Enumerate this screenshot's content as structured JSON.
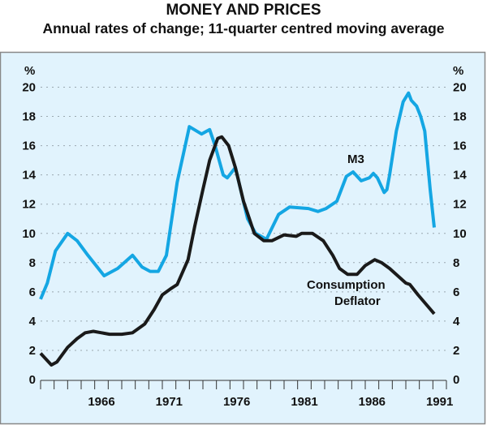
{
  "chart_data": {
    "type": "line",
    "title": "MONEY AND PRICES",
    "subtitle": "Annual rates of change; 11-quarter centred moving average",
    "ylabel_left": "%",
    "ylabel_right": "%",
    "ylim": [
      0,
      20
    ],
    "yticks": [
      0,
      2,
      4,
      6,
      8,
      10,
      12,
      14,
      16,
      18,
      20
    ],
    "xlim": [
      1962,
      1992
    ],
    "xtick_labels": [
      "1966",
      "1971",
      "1976",
      "1981",
      "1986",
      "1991"
    ],
    "grid": true,
    "colors": {
      "background": "#e1f3fd",
      "m3": "#14a6e3",
      "deflator": "#1a1a1a",
      "grid": "#9aa8b0",
      "border": "#888888"
    },
    "series": [
      {
        "name": "M3",
        "x": [
          1962.0,
          1962.5,
          1963.1,
          1964.0,
          1964.7,
          1965.5,
          1966.7,
          1967.7,
          1968.8,
          1969.5,
          1970.1,
          1970.7,
          1971.3,
          1972.1,
          1973.0,
          1973.9,
          1974.5,
          1974.9,
          1975.5,
          1975.8,
          1976.4,
          1977.3,
          1977.9,
          1978.7,
          1979.6,
          1980.4,
          1981.8,
          1982.5,
          1983.1,
          1983.9,
          1984.6,
          1985.1,
          1985.7,
          1986.3,
          1986.6,
          1986.9,
          1987.4,
          1987.6,
          1987.8,
          1988.3,
          1988.8,
          1989.2,
          1989.4,
          1989.8,
          1990.1,
          1990.4,
          1990.8,
          1991.1
        ],
        "values": [
          5.5,
          6.6,
          8.8,
          10.0,
          9.5,
          8.5,
          7.1,
          7.6,
          8.5,
          7.7,
          7.4,
          7.4,
          8.5,
          13.5,
          17.3,
          16.8,
          17.1,
          16.0,
          14.0,
          13.8,
          14.5,
          11.0,
          10.0,
          9.6,
          11.3,
          11.8,
          11.7,
          11.5,
          11.7,
          12.2,
          13.9,
          14.2,
          13.6,
          13.8,
          14.1,
          13.8,
          12.8,
          13.0,
          14.0,
          17.0,
          19.0,
          19.6,
          19.1,
          18.7,
          18.0,
          17.0,
          13.0,
          10.4
        ]
      },
      {
        "name": "Consumption Deflator",
        "x": [
          1962.0,
          1962.8,
          1963.2,
          1964.0,
          1964.7,
          1965.3,
          1965.9,
          1966.5,
          1967.1,
          1968.0,
          1968.8,
          1969.7,
          1970.4,
          1971.0,
          1971.6,
          1972.1,
          1972.9,
          1973.4,
          1974.0,
          1974.5,
          1975.1,
          1975.4,
          1975.9,
          1976.4,
          1977.0,
          1977.8,
          1978.5,
          1979.1,
          1980.0,
          1980.9,
          1981.3,
          1982.1,
          1982.9,
          1983.6,
          1984.1,
          1984.7,
          1985.4,
          1986.0,
          1986.7,
          1987.2,
          1987.8,
          1988.4,
          1989.0,
          1989.3,
          1989.9,
          1991.1
        ],
        "values": [
          1.8,
          1.0,
          1.2,
          2.2,
          2.8,
          3.2,
          3.3,
          3.2,
          3.1,
          3.1,
          3.2,
          3.8,
          4.8,
          5.8,
          6.2,
          6.5,
          8.2,
          10.5,
          13.0,
          15.0,
          16.5,
          16.6,
          16.0,
          14.5,
          12.2,
          10.0,
          9.5,
          9.5,
          9.9,
          9.8,
          10.0,
          10.0,
          9.5,
          8.5,
          7.6,
          7.2,
          7.2,
          7.8,
          8.2,
          8.0,
          7.6,
          7.1,
          6.6,
          6.5,
          5.8,
          4.5
        ]
      }
    ],
    "annotations": {
      "m3": "M3",
      "deflator_line1": "Consumption",
      "deflator_line2": "Deflator"
    }
  }
}
